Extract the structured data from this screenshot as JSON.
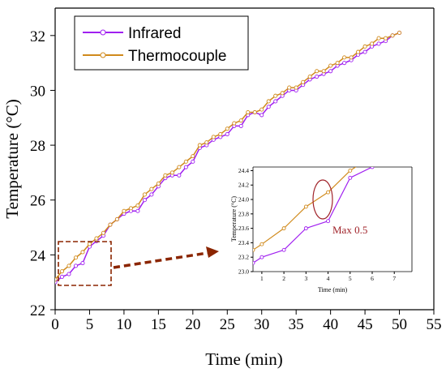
{
  "chart_data": [
    {
      "type": "line",
      "xlabel": "Time (min)",
      "ylabel": "Temperature (°C)",
      "xlim": [
        0,
        55
      ],
      "ylim": [
        22,
        33
      ],
      "xticks": [
        "0",
        "5",
        "10",
        "15",
        "20",
        "25",
        "30",
        "35",
        "40",
        "45",
        "50",
        "55"
      ],
      "yticks": [
        "22",
        "24",
        "26",
        "28",
        "30",
        "32"
      ],
      "legend_position": "top-left",
      "series": [
        {
          "name": "Infrared",
          "color": "#a020f0",
          "x": [
            0,
            1,
            2,
            3,
            4,
            5,
            6,
            7,
            8,
            9,
            10,
            11,
            12,
            13,
            14,
            15,
            16,
            17,
            18,
            19,
            20,
            21,
            22,
            23,
            24,
            25,
            26,
            27,
            28,
            29,
            30,
            31,
            32,
            33,
            34,
            35,
            36,
            37,
            38,
            39,
            40,
            41,
            42,
            43,
            44,
            45,
            46,
            47,
            48,
            49,
            50
          ],
          "values": [
            23.0,
            23.2,
            23.3,
            23.6,
            23.7,
            24.3,
            24.5,
            24.7,
            25.1,
            25.3,
            25.5,
            25.6,
            25.6,
            26.0,
            26.2,
            26.5,
            26.8,
            26.9,
            26.9,
            27.2,
            27.4,
            27.9,
            28.0,
            28.2,
            28.3,
            28.4,
            28.7,
            28.7,
            29.1,
            29.2,
            29.1,
            29.4,
            29.6,
            29.8,
            30.0,
            30.0,
            30.2,
            30.4,
            30.5,
            30.6,
            30.7,
            30.9,
            31.0,
            31.1,
            31.3,
            31.4,
            31.6,
            31.7,
            31.8,
            32.0,
            32.1
          ]
        },
        {
          "name": "Thermocouple",
          "color": "#d08a1c",
          "x": [
            0,
            1,
            2,
            3,
            4,
            5,
            6,
            7,
            8,
            9,
            10,
            11,
            12,
            13,
            14,
            15,
            16,
            17,
            18,
            19,
            20,
            21,
            22,
            23,
            24,
            25,
            26,
            27,
            28,
            29,
            30,
            31,
            32,
            33,
            34,
            35,
            36,
            37,
            38,
            39,
            40,
            41,
            42,
            43,
            44,
            45,
            46,
            47,
            48,
            49,
            50
          ],
          "values": [
            23.1,
            23.4,
            23.6,
            23.9,
            24.1,
            24.4,
            24.6,
            24.8,
            25.1,
            25.3,
            25.6,
            25.7,
            25.8,
            26.2,
            26.4,
            26.6,
            26.9,
            27.0,
            27.2,
            27.4,
            27.6,
            28.0,
            28.1,
            28.3,
            28.4,
            28.6,
            28.8,
            28.9,
            29.2,
            29.2,
            29.3,
            29.6,
            29.8,
            29.9,
            30.1,
            30.1,
            30.3,
            30.5,
            30.7,
            30.7,
            30.9,
            31.0,
            31.2,
            31.2,
            31.4,
            31.6,
            31.7,
            31.9,
            31.9,
            32.0,
            32.1
          ]
        }
      ]
    },
    {
      "type": "line",
      "xlabel": "Time (min)",
      "ylabel": "Temperature (°C)",
      "xlim": [
        0.6,
        7.8
      ],
      "ylim": [
        23.0,
        24.45
      ],
      "xticks": [
        "1",
        "2",
        "3",
        "4",
        "5",
        "6",
        "7"
      ],
      "yticks": [
        "23.0",
        "23.2",
        "23.4",
        "23.6",
        "23.8",
        "24.0",
        "24.2",
        "24.4"
      ],
      "annotation": "Max 0.5",
      "series": [
        {
          "name": "Infrared",
          "color": "#a020f0",
          "x": [
            0.6,
            1,
            2,
            3,
            4,
            5,
            6,
            6.3
          ],
          "values": [
            23.12,
            23.2,
            23.3,
            23.6,
            23.7,
            24.3,
            24.45,
            24.5
          ]
        },
        {
          "name": "Thermocouple",
          "color": "#d08a1c",
          "x": [
            0.6,
            1,
            2,
            3,
            4,
            5,
            5.5
          ],
          "values": [
            23.3,
            23.38,
            23.6,
            23.9,
            24.1,
            24.4,
            24.5
          ]
        }
      ]
    }
  ]
}
